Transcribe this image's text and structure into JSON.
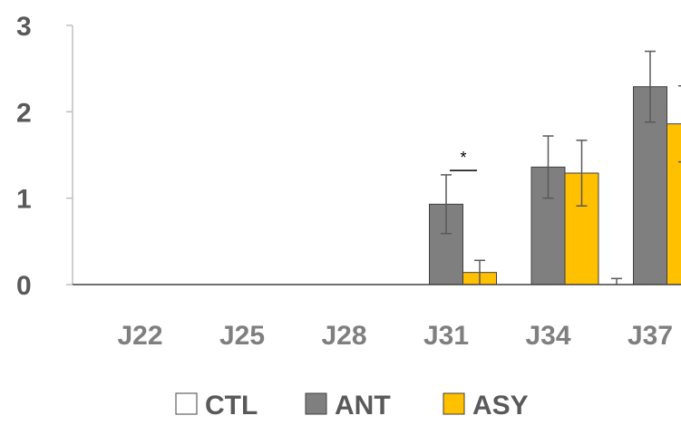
{
  "chart_data": {
    "type": "bar",
    "title": "",
    "xlabel": "",
    "ylabel": "",
    "ylim": [
      0,
      3
    ],
    "yticks": [
      "0",
      "1",
      "2",
      "3"
    ],
    "categories": [
      "J22",
      "J25",
      "J28",
      "J31",
      "J34",
      "J37"
    ],
    "series": [
      {
        "name": "CTL",
        "values": [
          0,
          0,
          0,
          0,
          0,
          0
        ],
        "errors": [
          0,
          0,
          0,
          0,
          0,
          0.07
        ],
        "color": "#ffffff",
        "stroke": "#404040"
      },
      {
        "name": "ANT",
        "values": [
          0,
          0,
          0,
          0.93,
          1.36,
          2.29
        ],
        "errors": [
          0,
          0,
          0,
          0.34,
          0.36,
          0.41
        ],
        "color": "#7f7f7f",
        "stroke": "#404040"
      },
      {
        "name": "ASY",
        "values": [
          0,
          0,
          0,
          0.14,
          1.29,
          1.86
        ],
        "errors": [
          0,
          0,
          0,
          0.14,
          0.38,
          0.44
        ],
        "color": "#ffc000",
        "stroke": "#404040"
      }
    ],
    "annotations": [
      {
        "text": "*",
        "category": "J31"
      }
    ],
    "legend_position": "bottom",
    "grid": false
  }
}
